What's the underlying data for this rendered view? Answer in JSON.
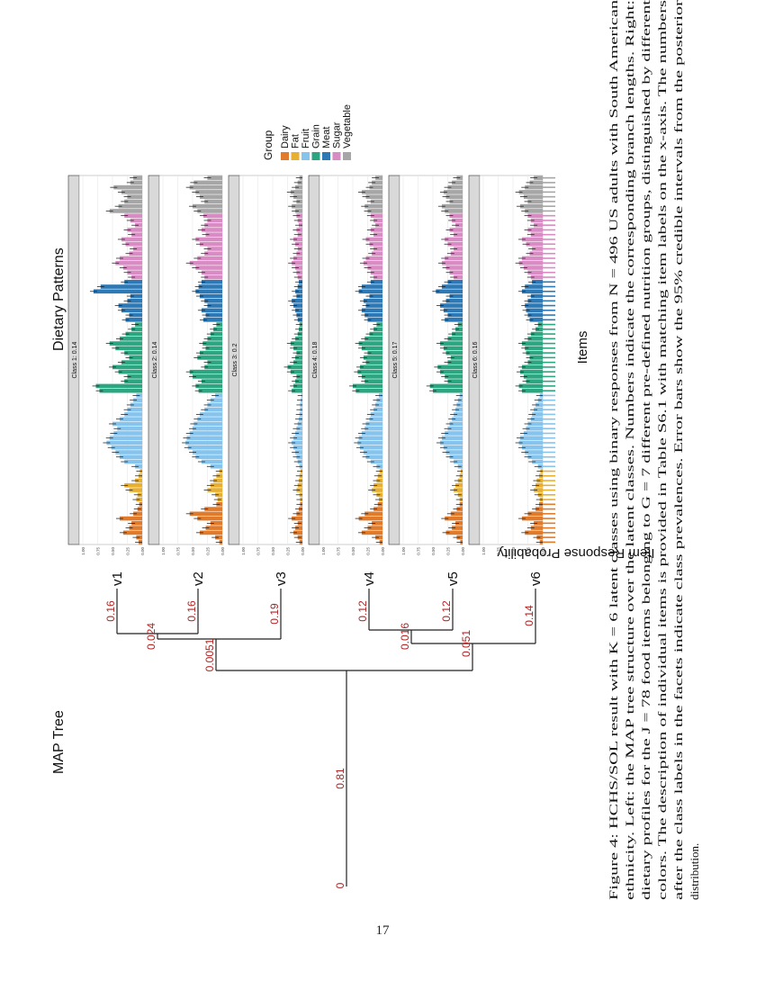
{
  "page_number": "17",
  "tree": {
    "title": "MAP Tree",
    "root_label": "0",
    "root_branch_label": "0.81",
    "leaves": [
      {
        "name": "v1",
        "branch": "0.16"
      },
      {
        "name": "v2",
        "branch": "0.16"
      },
      {
        "name": "v3",
        "branch": "0.19"
      },
      {
        "name": "v4",
        "branch": "0.12"
      },
      {
        "name": "v5",
        "branch": "0.12"
      },
      {
        "name": "v6",
        "branch": "0.14"
      }
    ],
    "internal_labels": {
      "v12": "0.024",
      "v123": "0.0051",
      "v45": "0.016",
      "v456": "0.051"
    }
  },
  "patterns": {
    "title": "Dietary Patterns",
    "ylabel": "Item Response Probability",
    "xlabel": "Items",
    "yticks": [
      "0.00",
      "0.25",
      "0.50",
      "0.75",
      "1.00"
    ]
  },
  "legend": {
    "title": "Group",
    "entries": [
      {
        "name": "Dairy",
        "color": "#e07b2c"
      },
      {
        "name": "Fat",
        "color": "#e8b030"
      },
      {
        "name": "Fruit",
        "color": "#86c4ee"
      },
      {
        "name": "Grain",
        "color": "#2ba680"
      },
      {
        "name": "Meat",
        "color": "#2d79b6"
      },
      {
        "name": "Sugar",
        "color": "#d98bc4"
      },
      {
        "name": "Vegetable",
        "color": "#a6a6a6"
      }
    ]
  },
  "chart_data": {
    "type": "bar",
    "title": "Dietary Patterns",
    "xlabel": "Items",
    "ylabel": "Item Response Probability",
    "ylim": [
      0,
      1
    ],
    "group_counts": {
      "Dairy": 9,
      "Fat": 7,
      "Fruit": 16,
      "Grain": 15,
      "Meat": 9,
      "Sugar": 14,
      "Vegetable": 8
    },
    "group_order": [
      "Dairy",
      "Fat",
      "Fruit",
      "Grain",
      "Meat",
      "Sugar",
      "Vegetable"
    ],
    "error_bars": "95% credible intervals",
    "classes": [
      {
        "label": "Class 1: 0.14",
        "values": [
          0.06,
          0.1,
          0.32,
          0.22,
          0.18,
          0.38,
          0.15,
          0.08,
          0.05,
          0.1,
          0.08,
          0.22,
          0.3,
          0.12,
          0.06,
          0.04,
          0.12,
          0.3,
          0.38,
          0.45,
          0.52,
          0.6,
          0.55,
          0.48,
          0.42,
          0.5,
          0.38,
          0.3,
          0.25,
          0.2,
          0.15,
          0.1,
          0.72,
          0.78,
          0.3,
          0.25,
          0.4,
          0.5,
          0.35,
          0.22,
          0.3,
          0.45,
          0.55,
          0.38,
          0.28,
          0.18,
          0.12,
          0.28,
          0.22,
          0.35,
          0.4,
          0.25,
          0.2,
          0.82,
          0.7,
          0.3,
          0.18,
          0.25,
          0.32,
          0.45,
          0.38,
          0.22,
          0.15,
          0.28,
          0.35,
          0.18,
          0.25,
          0.12,
          0.2,
          0.3,
          0.55,
          0.4,
          0.3,
          0.25,
          0.35,
          0.48,
          0.2,
          0.15
        ]
      },
      {
        "label": "Class 2: 0.14",
        "values": [
          0.05,
          0.12,
          0.38,
          0.28,
          0.2,
          0.42,
          0.55,
          0.3,
          0.1,
          0.08,
          0.12,
          0.25,
          0.2,
          0.15,
          0.1,
          0.05,
          0.2,
          0.35,
          0.45,
          0.5,
          0.58,
          0.62,
          0.6,
          0.55,
          0.5,
          0.48,
          0.42,
          0.38,
          0.3,
          0.25,
          0.2,
          0.12,
          0.4,
          0.45,
          0.35,
          0.5,
          0.55,
          0.3,
          0.25,
          0.42,
          0.38,
          0.28,
          0.33,
          0.25,
          0.2,
          0.15,
          0.1,
          0.32,
          0.28,
          0.35,
          0.25,
          0.3,
          0.38,
          0.45,
          0.4,
          0.35,
          0.3,
          0.35,
          0.45,
          0.55,
          0.42,
          0.3,
          0.25,
          0.38,
          0.45,
          0.28,
          0.35,
          0.3,
          0.25,
          0.32,
          0.42,
          0.5,
          0.3,
          0.38,
          0.45,
          0.55,
          0.48,
          0.25
        ]
      },
      {
        "label": "Class 3: 0.2",
        "values": [
          0.05,
          0.08,
          0.15,
          0.12,
          0.08,
          0.18,
          0.1,
          0.06,
          0.04,
          0.04,
          0.05,
          0.1,
          0.08,
          0.06,
          0.05,
          0.03,
          0.05,
          0.08,
          0.1,
          0.12,
          0.15,
          0.18,
          0.15,
          0.12,
          0.1,
          0.08,
          0.06,
          0.05,
          0.04,
          0.04,
          0.03,
          0.02,
          0.18,
          0.15,
          0.12,
          0.1,
          0.2,
          0.25,
          0.15,
          0.12,
          0.1,
          0.15,
          0.2,
          0.12,
          0.08,
          0.06,
          0.05,
          0.08,
          0.1,
          0.12,
          0.15,
          0.18,
          0.1,
          0.12,
          0.08,
          0.06,
          0.08,
          0.1,
          0.12,
          0.18,
          0.15,
          0.1,
          0.08,
          0.12,
          0.15,
          0.08,
          0.1,
          0.06,
          0.08,
          0.1,
          0.12,
          0.18,
          0.1,
          0.15,
          0.2,
          0.12,
          0.08,
          0.05
        ]
      },
      {
        "label": "Class 4: 0.18",
        "values": [
          0.05,
          0.12,
          0.35,
          0.25,
          0.18,
          0.4,
          0.3,
          0.15,
          0.08,
          0.06,
          0.1,
          0.18,
          0.15,
          0.1,
          0.08,
          0.05,
          0.1,
          0.2,
          0.28,
          0.32,
          0.38,
          0.42,
          0.4,
          0.35,
          0.3,
          0.28,
          0.22,
          0.2,
          0.15,
          0.12,
          0.1,
          0.06,
          0.45,
          0.5,
          0.3,
          0.35,
          0.42,
          0.38,
          0.28,
          0.32,
          0.25,
          0.35,
          0.4,
          0.3,
          0.22,
          0.15,
          0.1,
          0.25,
          0.3,
          0.35,
          0.28,
          0.32,
          0.22,
          0.4,
          0.35,
          0.2,
          0.15,
          0.2,
          0.25,
          0.32,
          0.28,
          0.18,
          0.15,
          0.22,
          0.28,
          0.15,
          0.2,
          0.12,
          0.15,
          0.2,
          0.25,
          0.3,
          0.2,
          0.28,
          0.35,
          0.22,
          0.18,
          0.12
        ]
      },
      {
        "label": "Class 5: 0.17",
        "values": [
          0.04,
          0.1,
          0.28,
          0.18,
          0.12,
          0.3,
          0.2,
          0.1,
          0.05,
          0.05,
          0.08,
          0.15,
          0.12,
          0.08,
          0.05,
          0.03,
          0.08,
          0.15,
          0.22,
          0.28,
          0.32,
          0.38,
          0.35,
          0.3,
          0.25,
          0.22,
          0.18,
          0.15,
          0.12,
          0.1,
          0.08,
          0.05,
          0.5,
          0.55,
          0.25,
          0.3,
          0.38,
          0.42,
          0.25,
          0.2,
          0.28,
          0.32,
          0.38,
          0.25,
          0.18,
          0.12,
          0.08,
          0.3,
          0.25,
          0.32,
          0.38,
          0.28,
          0.22,
          0.45,
          0.35,
          0.25,
          0.15,
          0.22,
          0.28,
          0.35,
          0.3,
          0.2,
          0.15,
          0.25,
          0.3,
          0.15,
          0.22,
          0.12,
          0.18,
          0.22,
          0.3,
          0.35,
          0.22,
          0.28,
          0.32,
          0.25,
          0.18,
          0.1
        ]
      },
      {
        "label": "Class 6: 0.16",
        "values": [
          0.05,
          0.1,
          0.3,
          0.2,
          0.15,
          0.35,
          0.25,
          0.12,
          0.06,
          0.05,
          0.08,
          0.15,
          0.12,
          0.1,
          0.06,
          0.04,
          0.08,
          0.18,
          0.25,
          0.3,
          0.35,
          0.4,
          0.38,
          0.32,
          0.28,
          0.25,
          0.2,
          0.18,
          0.15,
          0.12,
          0.08,
          0.05,
          0.35,
          0.4,
          0.28,
          0.32,
          0.38,
          0.35,
          0.25,
          0.22,
          0.28,
          0.3,
          0.35,
          0.25,
          0.2,
          0.12,
          0.08,
          0.22,
          0.25,
          0.28,
          0.3,
          0.25,
          0.2,
          0.35,
          0.3,
          0.18,
          0.2,
          0.25,
          0.32,
          0.4,
          0.35,
          0.22,
          0.18,
          0.28,
          0.35,
          0.2,
          0.25,
          0.15,
          0.2,
          0.25,
          0.3,
          0.38,
          0.25,
          0.32,
          0.4,
          0.3,
          0.22,
          0.15
        ]
      }
    ]
  },
  "caption": {
    "lines": [
      "Figure 4: HCHS/SOL result with K = 6 latent classes using binary responses from N = 496 US adults with South American",
      "ethnicity. Left: the MAP tree structure over the latent classes. Numbers indicate the corresponding branch lengths. Right:",
      "dietary profiles for the J = 78 food items belonging to G = 7 different pre-defined nutrition groups, distinguished by different",
      "colors. The description of individual items is provided in Table S6.1 with matching item labels on the x-axis. The numbers",
      "after the class labels in the facets indicate class prevalences. Error bars show the 95% credible intervals from the posterior",
      "distribution."
    ]
  }
}
